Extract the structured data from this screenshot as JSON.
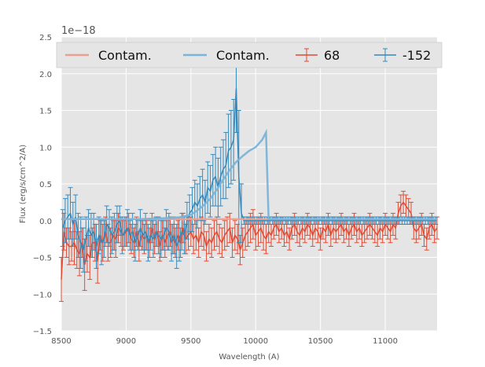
{
  "chart_data": {
    "type": "line",
    "xlabel": "Wavelength (A)",
    "ylabel": "Flux (erg/s/cm^2/A)",
    "y_offset_label": "1e−18",
    "xlim": [
      8500,
      11400
    ],
    "ylim": [
      -1.5,
      2.5
    ],
    "x_ticks": [
      8500,
      9000,
      9500,
      10000,
      10500,
      11000
    ],
    "x_tick_labels": [
      "8500",
      "9000",
      "9500",
      "10000",
      "10500",
      "11000"
    ],
    "y_ticks": [
      -1.5,
      -1.0,
      -0.5,
      0.0,
      0.5,
      1.0,
      1.5,
      2.0,
      2.5
    ],
    "y_tick_labels": [
      "−1.5",
      "−1.0",
      "−0.5",
      "0.0",
      "0.5",
      "1.0",
      "1.5",
      "2.0",
      "2.5"
    ],
    "grid": true,
    "legend_position": "top",
    "legend": [
      {
        "label": "Contam.",
        "kind": "line",
        "color": "#E8A090"
      },
      {
        "label": "Contam.",
        "kind": "line",
        "color": "#7AB4D8"
      },
      {
        "label": "68",
        "kind": "errorbar",
        "color": "#E24A33"
      },
      {
        "label": "-152",
        "kind": "errorbar",
        "color": "#348ABD"
      }
    ],
    "series": [
      {
        "name": "Contam.",
        "role": "contamination",
        "color": "#E8A090",
        "x": [
          8500,
          9000,
          9500,
          10000,
          10500,
          11000,
          11400
        ],
        "y": [
          0.02,
          0.02,
          0.02,
          0.02,
          0.02,
          0.02,
          0.02
        ]
      },
      {
        "name": "Contam.",
        "role": "contamination",
        "color": "#7AB4D8",
        "x": [
          8500,
          8800,
          9100,
          9400,
          9500,
          9550,
          9600,
          9650,
          9700,
          9750,
          9800,
          9850,
          9900,
          9950,
          10000,
          10050,
          10080,
          10100,
          10500,
          11000,
          11400
        ],
        "y": [
          0.02,
          0.02,
          0.02,
          0.04,
          0.08,
          0.14,
          0.21,
          0.3,
          0.42,
          0.56,
          0.69,
          0.8,
          0.88,
          0.95,
          1.0,
          1.1,
          1.2,
          0.02,
          0.02,
          0.02,
          0.02
        ]
      },
      {
        "name": "68",
        "role": "spectrum",
        "color": "#E24A33",
        "x_start": 8500,
        "x_step": 20,
        "y": [
          -0.8,
          -0.15,
          -0.3,
          -0.35,
          -0.35,
          -0.3,
          -0.4,
          -0.45,
          -0.3,
          -0.6,
          -0.45,
          -0.5,
          -0.3,
          -0.3,
          -0.55,
          -0.2,
          -0.3,
          -0.15,
          -0.3,
          -0.3,
          -0.2,
          -0.25,
          -0.1,
          -0.15,
          -0.2,
          -0.15,
          -0.1,
          -0.25,
          -0.3,
          -0.15,
          -0.35,
          -0.2,
          -0.25,
          -0.2,
          -0.3,
          -0.1,
          -0.25,
          -0.15,
          -0.35,
          -0.2,
          -0.3,
          -0.2,
          -0.15,
          -0.25,
          -0.3,
          -0.2,
          -0.3,
          -0.1,
          -0.25,
          -0.2,
          -0.15,
          -0.25,
          -0.2,
          -0.3,
          -0.15,
          -0.2,
          -0.35,
          -0.25,
          -0.3,
          -0.2,
          -0.15,
          -0.25,
          -0.3,
          -0.2,
          -0.15,
          -0.1,
          -0.3,
          -0.2,
          -0.25,
          -0.4,
          -0.3,
          -0.2,
          -0.15,
          -0.1,
          -0.05,
          -0.2,
          -0.15,
          -0.1,
          -0.2,
          -0.25,
          -0.15,
          -0.2,
          -0.1,
          -0.05,
          -0.15,
          -0.1,
          -0.2,
          -0.15,
          -0.25,
          -0.1,
          -0.05,
          -0.15,
          -0.2,
          -0.1,
          -0.15,
          -0.05,
          -0.1,
          -0.2,
          -0.1,
          -0.15,
          -0.25,
          -0.1,
          -0.15,
          -0.05,
          -0.2,
          -0.1,
          -0.15,
          -0.1,
          -0.05,
          -0.15,
          -0.1,
          -0.2,
          -0.1,
          -0.05,
          -0.15,
          -0.1,
          -0.2,
          -0.15,
          -0.1,
          -0.05,
          -0.1,
          -0.15,
          -0.2,
          -0.1,
          -0.15,
          -0.05,
          -0.1,
          -0.15,
          -0.05,
          -0.1,
          0.1,
          0.2,
          0.25,
          0.2,
          0.15,
          0.1,
          -0.1,
          -0.15,
          -0.1,
          -0.05,
          -0.2,
          -0.25,
          -0.1,
          -0.05,
          -0.15,
          -0.1
        ],
        "err": [
          0.3,
          0.25,
          0.2,
          0.25,
          0.2,
          0.3,
          0.25,
          0.3,
          0.2,
          0.35,
          0.25,
          0.3,
          0.2,
          0.25,
          0.3,
          0.2,
          0.25,
          0.2,
          0.25,
          0.2,
          0.2,
          0.25,
          0.2,
          0.2,
          0.2,
          0.2,
          0.2,
          0.2,
          0.2,
          0.2,
          0.2,
          0.2,
          0.2,
          0.2,
          0.2,
          0.2,
          0.2,
          0.2,
          0.2,
          0.2,
          0.2,
          0.2,
          0.2,
          0.2,
          0.2,
          0.2,
          0.2,
          0.2,
          0.2,
          0.2,
          0.2,
          0.2,
          0.2,
          0.2,
          0.2,
          0.2,
          0.2,
          0.2,
          0.2,
          0.2,
          0.2,
          0.2,
          0.2,
          0.2,
          0.2,
          0.2,
          0.2,
          0.2,
          0.2,
          0.2,
          0.2,
          0.2,
          0.2,
          0.2,
          0.2,
          0.2,
          0.2,
          0.2,
          0.2,
          0.2,
          0.15,
          0.15,
          0.15,
          0.15,
          0.15,
          0.15,
          0.15,
          0.15,
          0.15,
          0.15,
          0.15,
          0.15,
          0.15,
          0.15,
          0.15,
          0.15,
          0.15,
          0.15,
          0.15,
          0.15,
          0.15,
          0.15,
          0.15,
          0.15,
          0.15,
          0.15,
          0.15,
          0.15,
          0.15,
          0.15,
          0.15,
          0.15,
          0.15,
          0.15,
          0.15,
          0.15,
          0.15,
          0.15,
          0.15,
          0.15,
          0.15,
          0.15,
          0.15,
          0.15,
          0.15,
          0.15,
          0.15,
          0.15,
          0.15,
          0.15,
          0.15,
          0.15,
          0.15,
          0.15,
          0.15,
          0.15,
          0.15,
          0.15,
          0.15,
          0.15,
          0.15,
          0.15,
          0.15,
          0.15,
          0.15,
          0.15
        ]
      },
      {
        "name": "-152",
        "role": "spectrum",
        "color": "#348ABD",
        "x_start": 8510,
        "x_step": 20,
        "y": [
          -0.1,
          0.0,
          0.05,
          0.1,
          -0.05,
          0.05,
          -0.2,
          -0.3,
          -0.4,
          -0.25,
          -0.1,
          -0.2,
          -0.15,
          -0.35,
          -0.2,
          -0.3,
          -0.25,
          -0.05,
          -0.1,
          -0.2,
          -0.15,
          -0.05,
          0.0,
          -0.2,
          -0.15,
          -0.1,
          -0.2,
          -0.15,
          -0.3,
          -0.2,
          -0.1,
          -0.2,
          -0.15,
          -0.3,
          -0.2,
          -0.25,
          -0.15,
          -0.2,
          -0.25,
          -0.2,
          -0.1,
          -0.15,
          -0.3,
          -0.2,
          -0.35,
          -0.25,
          -0.15,
          -0.2,
          0.0,
          0.1,
          0.15,
          0.25,
          0.2,
          0.3,
          0.35,
          0.25,
          0.45,
          0.4,
          0.55,
          0.6,
          0.45,
          0.6,
          0.7,
          0.75,
          0.95,
          1.0,
          1.1,
          1.8,
          0.6,
          0.1,
          0.0,
          0.0,
          0.0,
          0.0,
          0.0,
          0.0,
          0.0,
          0.0,
          0.0,
          0.0,
          0.0,
          0.0,
          0.0,
          0.0,
          0.0,
          0.0,
          0.0,
          0.0,
          0.0,
          0.0,
          0.0,
          0.0,
          0.0,
          0.0,
          0.0,
          0.0,
          0.0,
          0.0,
          0.0,
          0.0,
          0.0,
          0.0,
          0.0,
          0.0,
          0.0,
          0.0,
          0.0,
          0.0,
          0.0,
          0.0,
          0.0,
          0.0,
          0.0,
          0.0,
          0.0,
          0.0,
          0.0,
          0.0,
          0.0,
          0.0,
          0.0,
          0.0,
          0.0,
          0.0,
          0.0,
          0.0,
          0.0,
          0.0,
          0.0,
          0.0,
          0.0,
          0.0,
          0.0,
          0.0,
          0.0,
          0.0,
          0.0,
          0.0,
          0.0,
          0.0,
          0.0,
          0.0,
          0.0,
          0.0,
          0.0
        ],
        "err": [
          0.25,
          0.3,
          0.3,
          0.35,
          0.3,
          0.3,
          0.3,
          0.35,
          0.3,
          0.3,
          0.25,
          0.3,
          0.25,
          0.3,
          0.25,
          0.3,
          0.25,
          0.25,
          0.25,
          0.25,
          0.25,
          0.25,
          0.2,
          0.25,
          0.2,
          0.25,
          0.2,
          0.25,
          0.25,
          0.2,
          0.25,
          0.2,
          0.25,
          0.25,
          0.2,
          0.25,
          0.2,
          0.25,
          0.25,
          0.2,
          0.25,
          0.25,
          0.25,
          0.25,
          0.3,
          0.3,
          0.25,
          0.25,
          0.25,
          0.25,
          0.3,
          0.3,
          0.3,
          0.3,
          0.35,
          0.3,
          0.35,
          0.35,
          0.35,
          0.4,
          0.4,
          0.4,
          0.4,
          0.45,
          0.5,
          0.5,
          0.55,
          0.6,
          0.9,
          0.4,
          0.05,
          0.05,
          0.05,
          0.05,
          0.05,
          0.05,
          0.05,
          0.05,
          0.05,
          0.05,
          0.05,
          0.05,
          0.05,
          0.05,
          0.05,
          0.05,
          0.05,
          0.05,
          0.05,
          0.05,
          0.05,
          0.05,
          0.05,
          0.05,
          0.05,
          0.05,
          0.05,
          0.05,
          0.05,
          0.05,
          0.05,
          0.05,
          0.05,
          0.05,
          0.05,
          0.05,
          0.05,
          0.05,
          0.05,
          0.05,
          0.05,
          0.05,
          0.05,
          0.05,
          0.05,
          0.05,
          0.05,
          0.05,
          0.05,
          0.05,
          0.05,
          0.05,
          0.05,
          0.05,
          0.05,
          0.05,
          0.05,
          0.05,
          0.05,
          0.05,
          0.05,
          0.05,
          0.05,
          0.05,
          0.05,
          0.05,
          0.05,
          0.05,
          0.05,
          0.05,
          0.05,
          0.05,
          0.05,
          0.05,
          0.05
        ]
      }
    ],
    "colors": {
      "background": "#FFFFFF",
      "plot_background": "#E5E5E5",
      "grid": "#FFFFFF",
      "text": "#555555"
    }
  }
}
